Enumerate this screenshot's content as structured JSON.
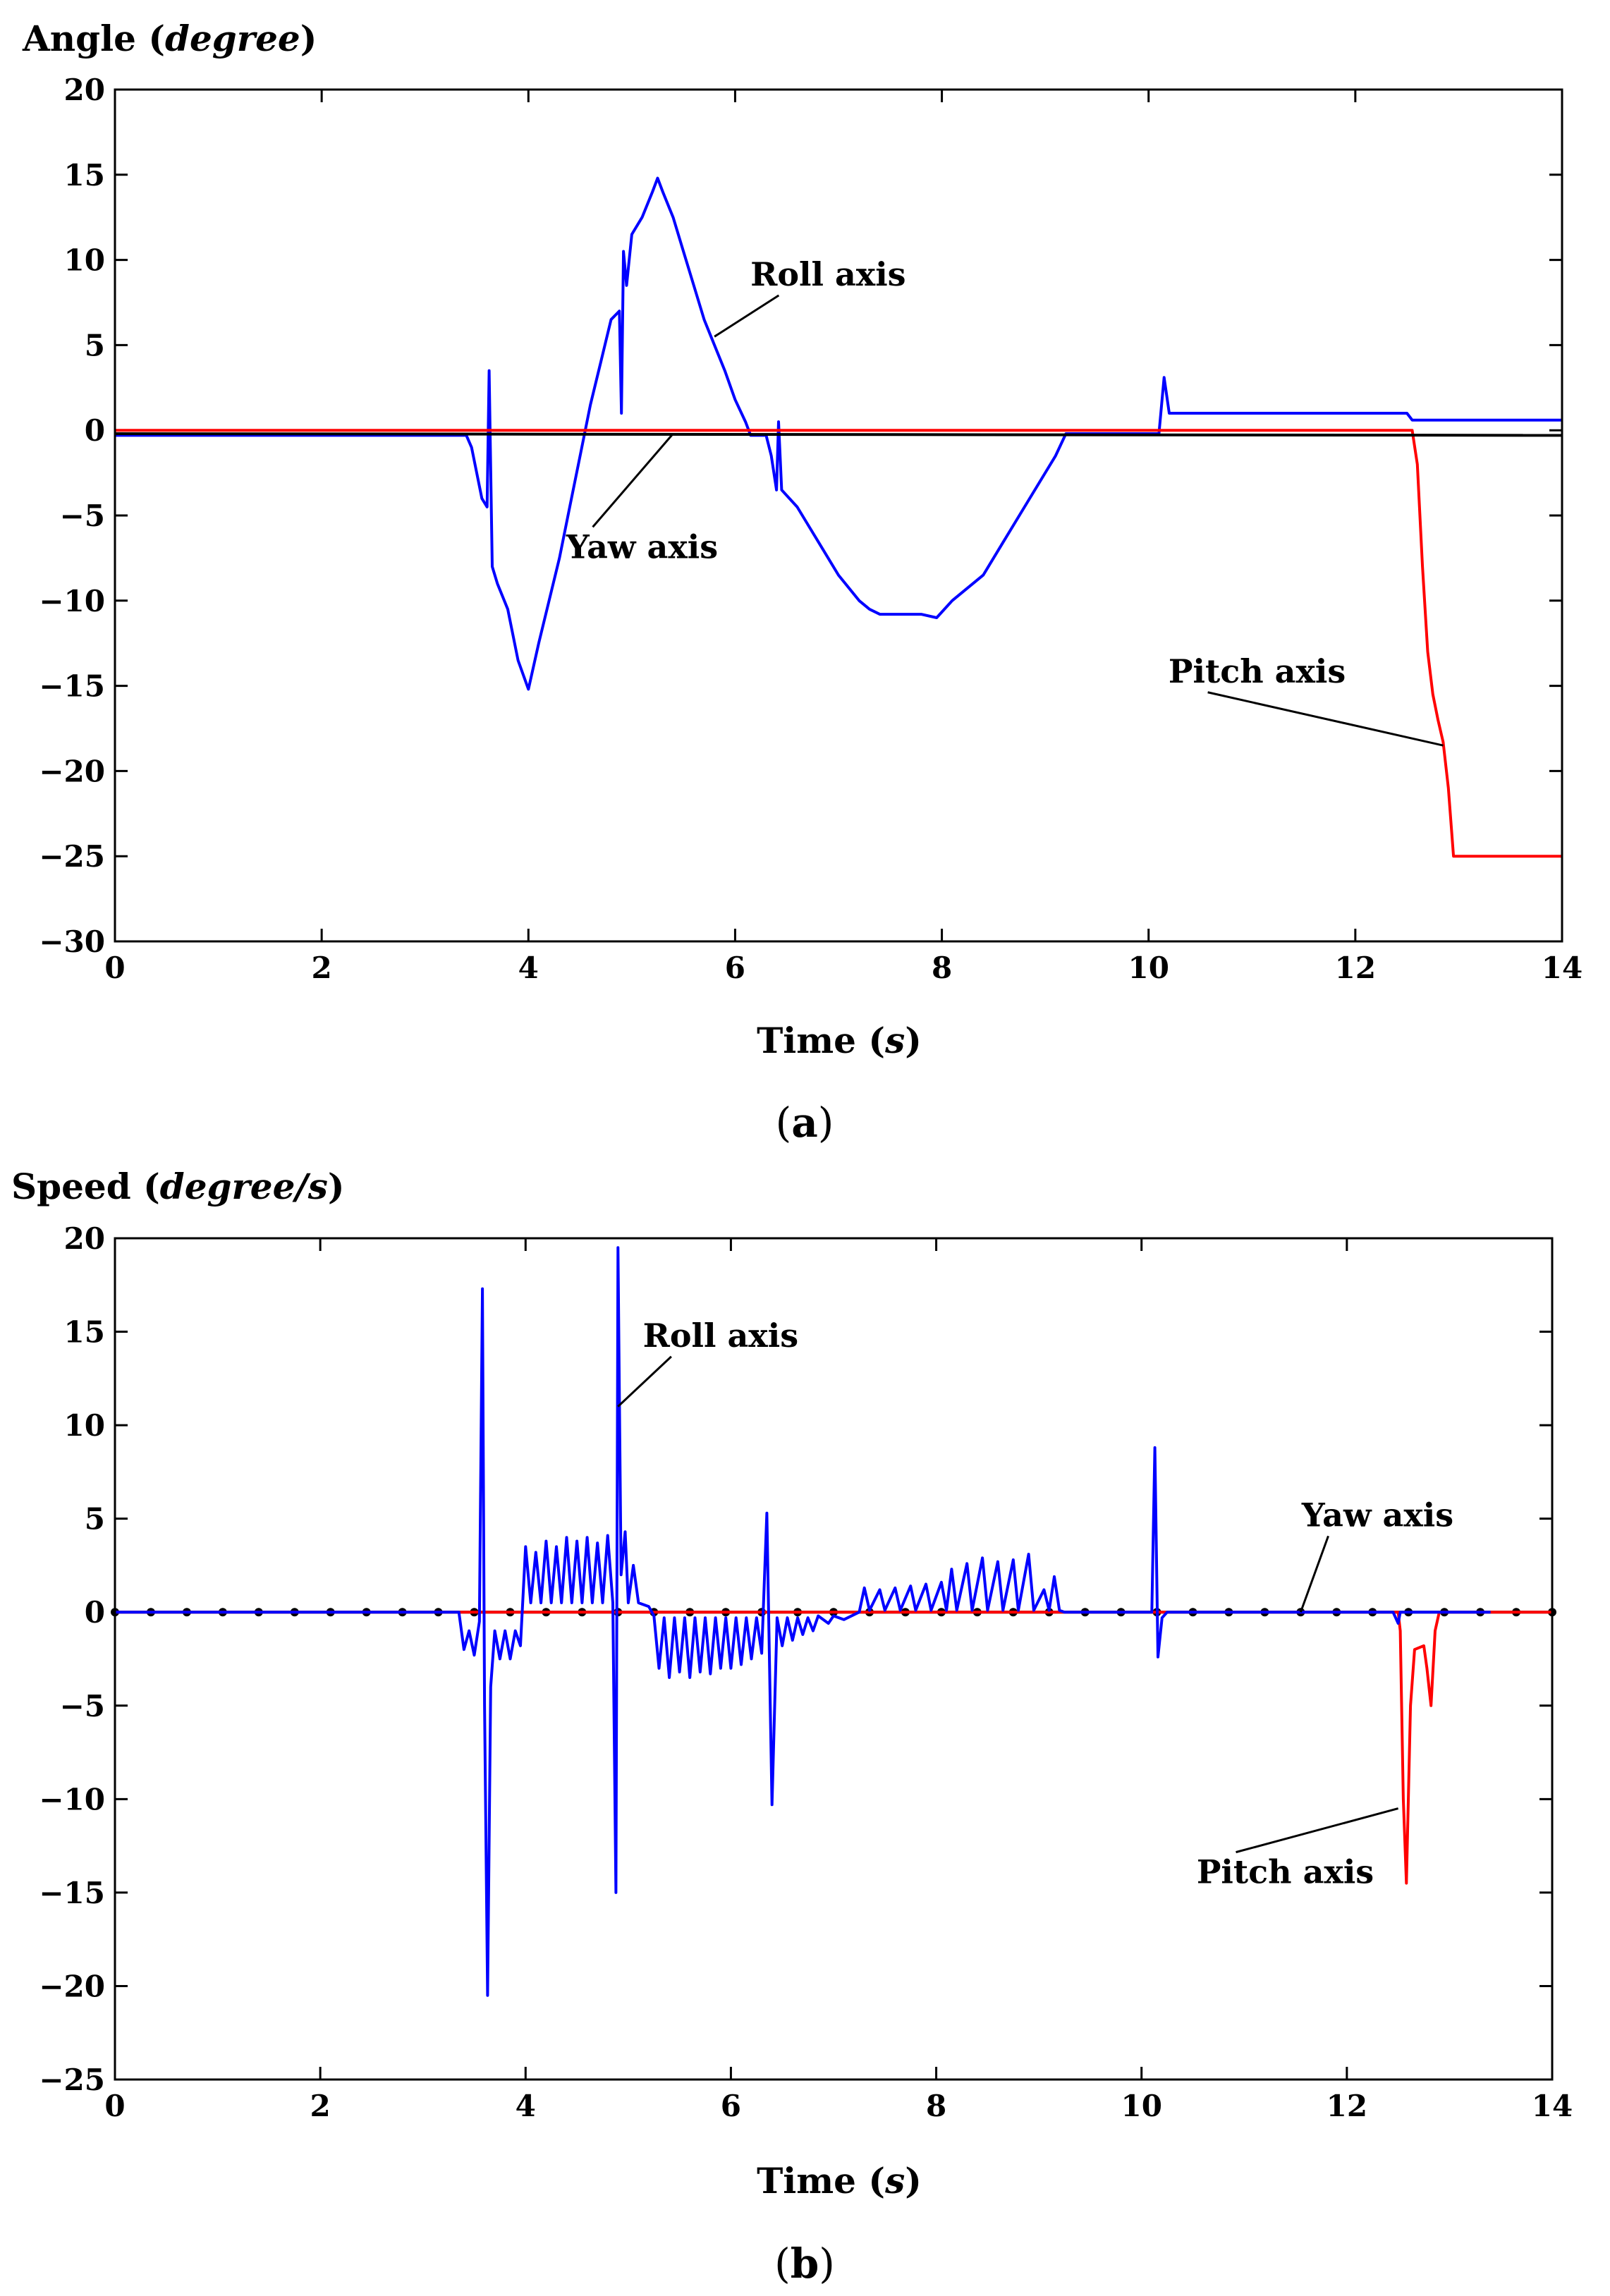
{
  "chart_data": [
    {
      "type": "line",
      "panel_label": "(a)",
      "caption_letter": "a",
      "ylabel": "Angle",
      "ylabel_unit": "degree",
      "xlabel": "Time",
      "xlabel_unit": "s",
      "xlim": [
        0,
        14
      ],
      "ylim": [
        -30,
        20
      ],
      "xticks": [
        0,
        2,
        4,
        6,
        8,
        10,
        12,
        14
      ],
      "yticks": [
        20,
        15,
        10,
        5,
        0,
        -5,
        -10,
        -15,
        -20,
        -25,
        -30
      ],
      "ytick_labels": [
        "20",
        "15",
        "10",
        "5",
        "0",
        "−5",
        "−10",
        "−15",
        "−20",
        "−25",
        "−30"
      ],
      "annotations": [
        {
          "text": "Roll axis",
          "target": [
            5.8,
            5.5
          ],
          "label_at": [
            6.9,
            8.5
          ]
        },
        {
          "text": "Yaw axis",
          "target": [
            5.4,
            -0.2
          ],
          "label_at": [
            5.1,
            -7.5
          ]
        },
        {
          "text": "Pitch axis",
          "target": [
            12.85,
            -18.5
          ],
          "label_at": [
            11.05,
            -14.8
          ]
        }
      ],
      "series": [
        {
          "name": "Roll axis",
          "color": "#0000ff",
          "points": [
            [
              0,
              -0.3
            ],
            [
              3.4,
              -0.3
            ],
            [
              3.45,
              -1
            ],
            [
              3.5,
              -2.5
            ],
            [
              3.55,
              -4
            ],
            [
              3.6,
              -4.5
            ],
            [
              3.62,
              3.5
            ],
            [
              3.65,
              -8
            ],
            [
              3.7,
              -9
            ],
            [
              3.8,
              -10.5
            ],
            [
              3.9,
              -13.5
            ],
            [
              4.0,
              -15.2
            ],
            [
              4.1,
              -12.5
            ],
            [
              4.2,
              -10
            ],
            [
              4.3,
              -7.5
            ],
            [
              4.4,
              -4.5
            ],
            [
              4.5,
              -1.5
            ],
            [
              4.6,
              1.5
            ],
            [
              4.7,
              4
            ],
            [
              4.8,
              6.5
            ],
            [
              4.88,
              7
            ],
            [
              4.9,
              1
            ],
            [
              4.92,
              10.5
            ],
            [
              4.95,
              8.5
            ],
            [
              5.0,
              11.5
            ],
            [
              5.1,
              12.5
            ],
            [
              5.2,
              14
            ],
            [
              5.25,
              14.8
            ],
            [
              5.3,
              14
            ],
            [
              5.4,
              12.5
            ],
            [
              5.5,
              10.5
            ],
            [
              5.6,
              8.5
            ],
            [
              5.7,
              6.5
            ],
            [
              5.8,
              5
            ],
            [
              5.9,
              3.5
            ],
            [
              6.0,
              1.8
            ],
            [
              6.1,
              0.5
            ],
            [
              6.15,
              -0.3
            ],
            [
              6.3,
              -0.3
            ],
            [
              6.35,
              -1.5
            ],
            [
              6.4,
              -3.5
            ],
            [
              6.42,
              0.5
            ],
            [
              6.45,
              -3.5
            ],
            [
              6.6,
              -4.5
            ],
            [
              6.8,
              -6.5
            ],
            [
              7.0,
              -8.5
            ],
            [
              7.2,
              -10
            ],
            [
              7.3,
              -10.5
            ],
            [
              7.4,
              -10.8
            ],
            [
              7.6,
              -10.8
            ],
            [
              7.8,
              -10.8
            ],
            [
              7.95,
              -11
            ],
            [
              8.1,
              -10
            ],
            [
              8.2,
              -9.5
            ],
            [
              8.4,
              -8.5
            ],
            [
              8.6,
              -6.5
            ],
            [
              8.8,
              -4.5
            ],
            [
              9.0,
              -2.5
            ],
            [
              9.1,
              -1.5
            ],
            [
              9.2,
              -0.2
            ],
            [
              9.5,
              -0.2
            ],
            [
              10.1,
              -0.2
            ],
            [
              10.15,
              3.1
            ],
            [
              10.2,
              1
            ],
            [
              12.5,
              1
            ],
            [
              12.55,
              0.6
            ],
            [
              14,
              0.6
            ]
          ]
        },
        {
          "name": "Pitch axis",
          "color": "#ff0000",
          "points": [
            [
              0,
              0
            ],
            [
              12.55,
              0
            ],
            [
              12.6,
              -2
            ],
            [
              12.65,
              -8
            ],
            [
              12.7,
              -13
            ],
            [
              12.75,
              -15.5
            ],
            [
              12.8,
              -17
            ],
            [
              12.85,
              -18.3
            ],
            [
              12.9,
              -21
            ],
            [
              12.95,
              -25
            ],
            [
              14,
              -25
            ]
          ]
        },
        {
          "name": "Yaw axis",
          "color": "#000000",
          "points": [
            [
              0,
              -0.2
            ],
            [
              14,
              -0.3
            ]
          ]
        }
      ]
    },
    {
      "type": "line",
      "panel_label": "(b)",
      "caption_letter": "b",
      "ylabel": "Speed",
      "ylabel_unit": "degree/s",
      "xlabel": "Time",
      "xlabel_unit": "s",
      "xlim": [
        0,
        14
      ],
      "ylim": [
        -25,
        20
      ],
      "xticks": [
        0,
        2,
        4,
        6,
        8,
        10,
        12,
        14
      ],
      "yticks": [
        20,
        15,
        10,
        5,
        0,
        -5,
        -10,
        -15,
        -20,
        -25
      ],
      "ytick_labels": [
        "20",
        "15",
        "10",
        "5",
        "0",
        "−5",
        "−10",
        "−15",
        "−20",
        "−25"
      ],
      "annotations": [
        {
          "text": "Roll axis",
          "target": [
            4.9,
            11
          ],
          "label_at": [
            5.9,
            14.2
          ]
        },
        {
          "text": "Yaw axis",
          "target": [
            11.55,
            0
          ],
          "label_at": [
            12.3,
            4.6
          ]
        },
        {
          "text": "Pitch axis",
          "target": [
            12.5,
            -10.5
          ],
          "label_at": [
            11.4,
            -14.5
          ]
        }
      ],
      "series": [
        {
          "name": "Yaw axis",
          "color": "#000000",
          "style": "dotted",
          "points": [
            [
              0,
              0
            ],
            [
              14,
              0
            ]
          ]
        },
        {
          "name": "Pitch axis",
          "color": "#ff0000",
          "points": [
            [
              0,
              0
            ],
            [
              12.5,
              0
            ],
            [
              12.52,
              -1
            ],
            [
              12.55,
              -10
            ],
            [
              12.58,
              -14.5
            ],
            [
              12.62,
              -5
            ],
            [
              12.66,
              -2
            ],
            [
              12.75,
              -1.8
            ],
            [
              12.78,
              -3
            ],
            [
              12.82,
              -5
            ],
            [
              12.86,
              -1
            ],
            [
              12.9,
              0
            ],
            [
              14,
              0
            ]
          ]
        },
        {
          "name": "Roll axis",
          "color": "#0000ff",
          "points": [
            [
              0,
              0
            ],
            [
              3.35,
              0
            ],
            [
              3.4,
              -2
            ],
            [
              3.45,
              -1
            ],
            [
              3.5,
              -2.3
            ],
            [
              3.55,
              -0.5
            ],
            [
              3.58,
              17.3
            ],
            [
              3.6,
              -5
            ],
            [
              3.63,
              -20.5
            ],
            [
              3.66,
              -4
            ],
            [
              3.7,
              -1
            ],
            [
              3.75,
              -2.5
            ],
            [
              3.8,
              -1
            ],
            [
              3.85,
              -2.5
            ],
            [
              3.9,
              -1
            ],
            [
              3.95,
              -1.8
            ],
            [
              4.0,
              3.5
            ],
            [
              4.05,
              0.5
            ],
            [
              4.1,
              3.2
            ],
            [
              4.15,
              0.5
            ],
            [
              4.2,
              3.8
            ],
            [
              4.25,
              0.5
            ],
            [
              4.3,
              3.5
            ],
            [
              4.35,
              0.5
            ],
            [
              4.4,
              4
            ],
            [
              4.45,
              0.5
            ],
            [
              4.5,
              3.8
            ],
            [
              4.55,
              0.5
            ],
            [
              4.6,
              4
            ],
            [
              4.65,
              0.5
            ],
            [
              4.7,
              3.7
            ],
            [
              4.75,
              0.5
            ],
            [
              4.8,
              4.1
            ],
            [
              4.85,
              0.5
            ],
            [
              4.88,
              -15
            ],
            [
              4.9,
              19.5
            ],
            [
              4.93,
              2
            ],
            [
              4.97,
              4.3
            ],
            [
              5.0,
              0.5
            ],
            [
              5.05,
              2.5
            ],
            [
              5.1,
              0.5
            ],
            [
              5.2,
              0.3
            ],
            [
              5.25,
              -0.2
            ],
            [
              5.3,
              -3
            ],
            [
              5.35,
              -0.3
            ],
            [
              5.4,
              -3.5
            ],
            [
              5.45,
              -0.3
            ],
            [
              5.5,
              -3.2
            ],
            [
              5.55,
              -0.3
            ],
            [
              5.6,
              -3.5
            ],
            [
              5.65,
              -0.3
            ],
            [
              5.7,
              -3.2
            ],
            [
              5.75,
              -0.3
            ],
            [
              5.8,
              -3.3
            ],
            [
              5.85,
              -0.3
            ],
            [
              5.9,
              -3
            ],
            [
              5.95,
              -0.3
            ],
            [
              6.0,
              -3
            ],
            [
              6.05,
              -0.3
            ],
            [
              6.1,
              -2.8
            ],
            [
              6.15,
              -0.3
            ],
            [
              6.2,
              -2.5
            ],
            [
              6.25,
              -0.3
            ],
            [
              6.3,
              -2.2
            ],
            [
              6.35,
              5.3
            ],
            [
              6.4,
              -10.3
            ],
            [
              6.45,
              -0.3
            ],
            [
              6.5,
              -1.8
            ],
            [
              6.55,
              -0.3
            ],
            [
              6.6,
              -1.5
            ],
            [
              6.65,
              -0.3
            ],
            [
              6.7,
              -1.2
            ],
            [
              6.75,
              -0.3
            ],
            [
              6.8,
              -1
            ],
            [
              6.85,
              -0.2
            ],
            [
              6.95,
              -0.6
            ],
            [
              7.0,
              -0.2
            ],
            [
              7.1,
              -0.4
            ],
            [
              7.25,
              0
            ],
            [
              7.3,
              1.3
            ],
            [
              7.35,
              0.1
            ],
            [
              7.45,
              1.2
            ],
            [
              7.5,
              0.1
            ],
            [
              7.6,
              1.3
            ],
            [
              7.65,
              0.1
            ],
            [
              7.75,
              1.4
            ],
            [
              7.8,
              0.1
            ],
            [
              7.9,
              1.5
            ],
            [
              7.95,
              0.1
            ],
            [
              8.05,
              1.6
            ],
            [
              8.1,
              0.1
            ],
            [
              8.15,
              2.3
            ],
            [
              8.2,
              0.1
            ],
            [
              8.3,
              2.6
            ],
            [
              8.35,
              0.1
            ],
            [
              8.45,
              2.9
            ],
            [
              8.5,
              0.1
            ],
            [
              8.6,
              2.7
            ],
            [
              8.65,
              0.1
            ],
            [
              8.75,
              2.8
            ],
            [
              8.8,
              0.1
            ],
            [
              8.9,
              3.1
            ],
            [
              8.95,
              0.1
            ],
            [
              9.05,
              1.2
            ],
            [
              9.1,
              0.1
            ],
            [
              9.15,
              1.9
            ],
            [
              9.2,
              0.1
            ],
            [
              9.25,
              0
            ],
            [
              10.1,
              0
            ],
            [
              10.13,
              8.8
            ],
            [
              10.16,
              -2.4
            ],
            [
              10.2,
              -0.3
            ],
            [
              10.25,
              0
            ],
            [
              12.45,
              0
            ],
            [
              12.5,
              -0.6
            ],
            [
              12.52,
              0
            ],
            [
              13.4,
              0
            ]
          ]
        }
      ]
    }
  ]
}
